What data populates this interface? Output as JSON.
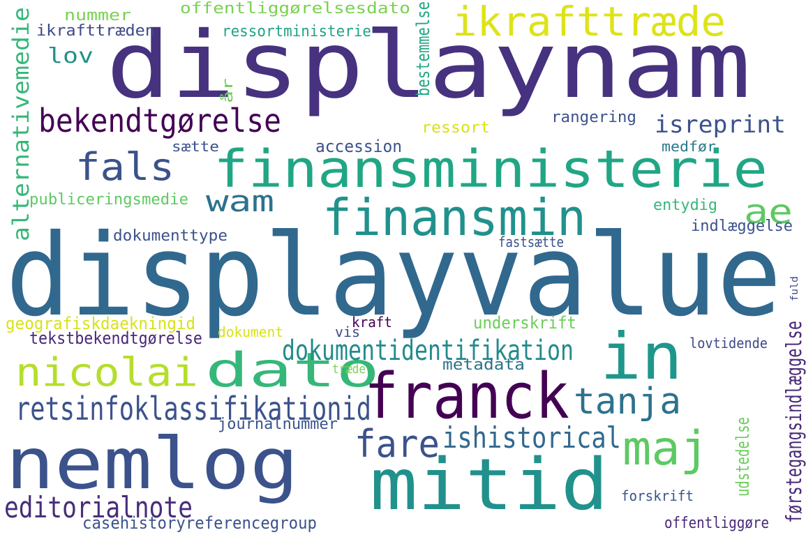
{
  "words": [
    {
      "text": "displaynam",
      "color": "#46327e"
    },
    {
      "text": "ikrafttræde",
      "color": "#dde318"
    },
    {
      "text": "lov",
      "color": "#21918c"
    },
    {
      "text": "bekendtgørelse",
      "color": "#440154"
    },
    {
      "text": "isreprint",
      "color": "#3b528b"
    },
    {
      "text": "fals",
      "color": "#3b528b"
    },
    {
      "text": "finansministerie",
      "color": "#21a685"
    },
    {
      "text": "wam",
      "color": "#2c728e"
    },
    {
      "text": "ae",
      "color": "#5ec962"
    },
    {
      "text": "finansmin",
      "color": "#21918c"
    },
    {
      "text": "alternativemedie",
      "color": "#35b779"
    },
    {
      "text": "displayvalue",
      "color": "#31688e"
    },
    {
      "text": "in",
      "color": "#1f968b"
    },
    {
      "text": "dato",
      "color": "#35b779"
    },
    {
      "text": "nicolai",
      "color": "#b5de2b"
    },
    {
      "text": "dokumentidentifikation",
      "color": "#238a8d"
    },
    {
      "text": "franck",
      "color": "#440154"
    },
    {
      "text": "tanja",
      "color": "#2c728e"
    },
    {
      "text": "retsinfoklassifikationid",
      "color": "#3b528b"
    },
    {
      "text": "fare",
      "color": "#3b528b"
    },
    {
      "text": "ishistorical",
      "color": "#31688e"
    },
    {
      "text": "maj",
      "color": "#5ec962"
    },
    {
      "text": "nemlog",
      "color": "#3b528b"
    },
    {
      "text": "mitid",
      "color": "#21918c"
    },
    {
      "text": "editorialnote",
      "color": "#472d7b"
    },
    {
      "text": "nummer",
      "color": "#7ad151"
    },
    {
      "text": "offentliggørelsesdato",
      "color": "#7ad151"
    },
    {
      "text": "ikrafttræden",
      "color": "#3e4989"
    },
    {
      "text": "ressortministerie",
      "color": "#20a386"
    },
    {
      "text": "bestemmelse",
      "color": "#22a884"
    },
    {
      "text": "år",
      "color": "#6ccd5a"
    },
    {
      "text": "rangering",
      "color": "#3b528b"
    },
    {
      "text": "ressort",
      "color": "#d8e219"
    },
    {
      "text": "sætte",
      "color": "#3b528b"
    },
    {
      "text": "accession",
      "color": "#3b528b"
    },
    {
      "text": "medfør",
      "color": "#2a788e"
    },
    {
      "text": "publiceringsmedie",
      "color": "#5ec962"
    },
    {
      "text": "entydig",
      "color": "#35b779"
    },
    {
      "text": "indlæggelse",
      "color": "#3b528b"
    },
    {
      "text": "dokumenttype",
      "color": "#3b528b"
    },
    {
      "text": "fastsætte",
      "color": "#3b528b"
    },
    {
      "text": "fuld",
      "color": "#3e4989"
    },
    {
      "text": "geografiskdaekningid",
      "color": "#d8e219"
    },
    {
      "text": "dokument",
      "color": "#d8e219"
    },
    {
      "text": "vis",
      "color": "#3e4989"
    },
    {
      "text": "kraft",
      "color": "#440154"
    },
    {
      "text": "underskrift",
      "color": "#6ccd5a"
    },
    {
      "text": "tekstbekendtgørelse",
      "color": "#482878"
    },
    {
      "text": "førstegangsindlæggelse",
      "color": "#482878"
    },
    {
      "text": "lovtidende",
      "color": "#3e4989"
    },
    {
      "text": "træde",
      "color": "#7ad151"
    },
    {
      "text": "metadata",
      "color": "#2c728e"
    },
    {
      "text": "journalnummer",
      "color": "#3b528b"
    },
    {
      "text": "udstedelse",
      "color": "#6ccd5a"
    },
    {
      "text": "forskrift",
      "color": "#3b528b"
    },
    {
      "text": "casehistoryreferencegroup",
      "color": "#3b528b"
    },
    {
      "text": "offentliggøre",
      "color": "#482878"
    }
  ]
}
